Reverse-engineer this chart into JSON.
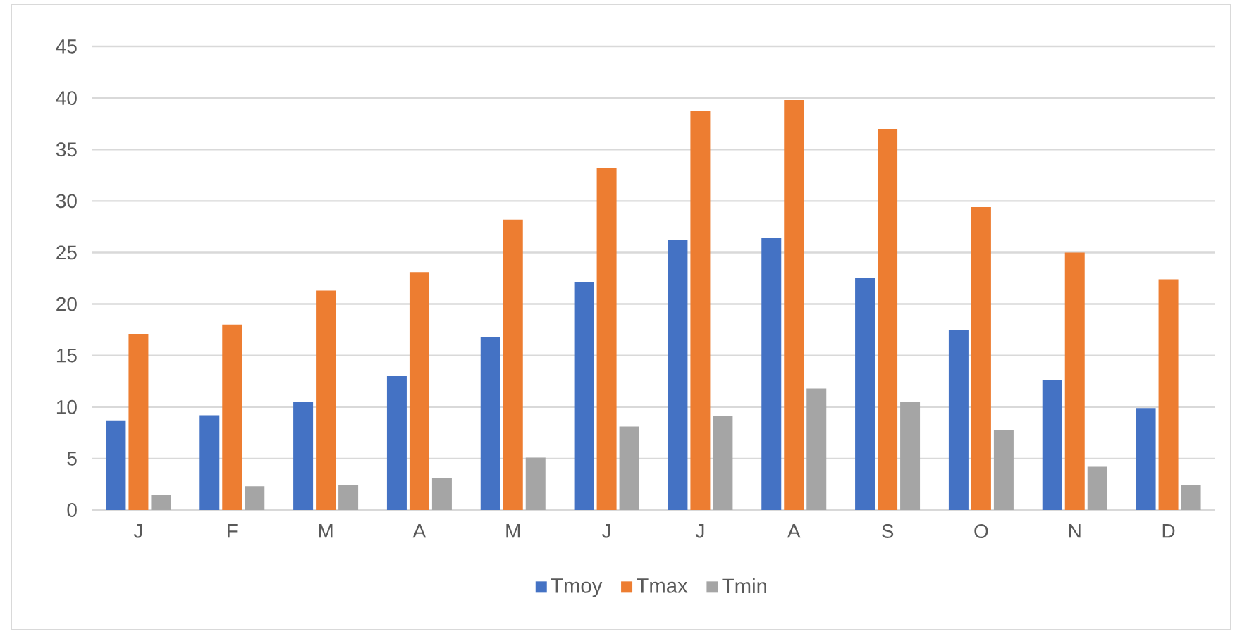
{
  "chart_data": {
    "type": "bar",
    "categories": [
      "J",
      "F",
      "M",
      "A",
      "M",
      "J",
      "J",
      "A",
      "S",
      "O",
      "N",
      "D"
    ],
    "series": [
      {
        "name": "Tmoy",
        "color": "#4472c4",
        "values": [
          8.7,
          9.2,
          10.5,
          13,
          16.8,
          22.1,
          26.2,
          26.4,
          22.5,
          17.5,
          12.6,
          9.9
        ]
      },
      {
        "name": "Tmax",
        "color": "#ed7d31",
        "values": [
          17.1,
          18,
          21.3,
          23.1,
          28.2,
          33.2,
          38.7,
          39.8,
          37,
          29.4,
          25,
          22.4
        ]
      },
      {
        "name": "Tmin",
        "color": "#a5a5a5",
        "values": [
          1.5,
          2.3,
          2.4,
          3.1,
          5.1,
          8.1,
          9.1,
          11.8,
          10.5,
          7.8,
          4.2,
          2.4
        ]
      }
    ],
    "ylim": [
      0,
      45
    ],
    "yticks": [
      0,
      5,
      10,
      15,
      20,
      25,
      30,
      35,
      40,
      45
    ],
    "grid": "y",
    "legend": "bottom"
  }
}
